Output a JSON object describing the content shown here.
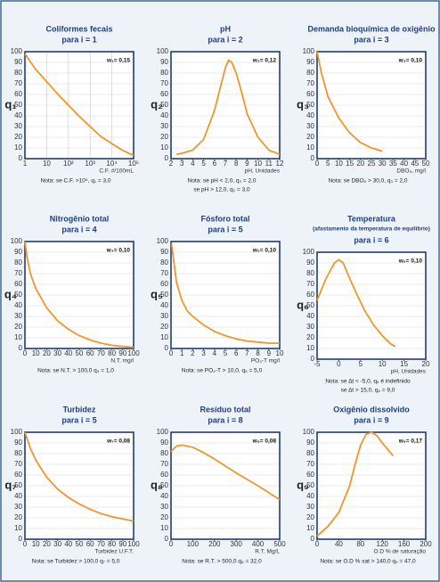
{
  "chart_data": [
    {
      "type": "line",
      "title": "Coliformes fecais",
      "subtitle": [
        "para i = 1"
      ],
      "ylabel": "q₁",
      "weight": "w₁= 0,15",
      "xlabel": "C.F. #/100mL",
      "xscale": "log",
      "x": [
        1,
        3,
        10,
        30,
        100,
        300,
        1000,
        3000,
        10000,
        30000,
        100000
      ],
      "values": [
        98,
        84,
        72,
        61,
        50,
        40,
        30,
        21,
        14,
        8,
        3
      ],
      "xlim": [
        1,
        100000
      ],
      "xticks": [
        {
          "value": 1,
          "label": "1"
        },
        {
          "value": 10,
          "label": "10"
        },
        {
          "value": 100,
          "label": "10²"
        },
        {
          "value": 1000,
          "label": "10³"
        },
        {
          "value": 10000,
          "label": "10⁴"
        },
        {
          "value": 100000,
          "label": "10⁵"
        }
      ],
      "ylim": [
        0,
        100
      ],
      "yticks": [
        0,
        10,
        20,
        30,
        40,
        50,
        60,
        70,
        80,
        90,
        100
      ],
      "grid": true,
      "color": "#f0962a",
      "notes": [
        "Nota: se C.F. >10⁵, q₁ = 3,0"
      ]
    },
    {
      "type": "line",
      "title": "pH",
      "subtitle": [
        "para i = 2"
      ],
      "ylabel": "q₂",
      "weight": "w₂= 0,12",
      "xlabel": "pH, Unidades",
      "x": [
        2.5,
        3,
        4,
        5,
        6,
        6.5,
        7,
        7.3,
        7.6,
        8,
        8.5,
        9,
        10,
        11,
        12
      ],
      "values": [
        4,
        5,
        8,
        18,
        45,
        65,
        85,
        92,
        90,
        80,
        62,
        42,
        20,
        8,
        4
      ],
      "xlim": [
        2,
        12
      ],
      "xticks": [
        2,
        3,
        4,
        5,
        6,
        7,
        8,
        9,
        10,
        11,
        12
      ],
      "ylim": [
        0,
        100
      ],
      "yticks": [
        0,
        10,
        20,
        30,
        40,
        50,
        60,
        70,
        80,
        90,
        100
      ],
      "grid": true,
      "color": "#f0962a",
      "notes": [
        "Nota: se pH < 2,0, q₂ = 2,0",
        "se pH > 12,0, q₂ = 3,0"
      ]
    },
    {
      "type": "line",
      "title": "Demanda bioquímica de oxigênio",
      "subtitle": [
        "para i = 3"
      ],
      "ylabel": "q₃",
      "weight": "w₃= 0,10",
      "xlabel": "DBO₅, mg/l",
      "x": [
        0,
        2,
        5,
        10,
        15,
        20,
        25,
        30
      ],
      "values": [
        100,
        80,
        58,
        38,
        24,
        15,
        10,
        7
      ],
      "xlim": [
        0,
        50
      ],
      "xticks": [
        0,
        5,
        10,
        15,
        20,
        25,
        30,
        35,
        40,
        45,
        50
      ],
      "ylim": [
        0,
        100
      ],
      "yticks": [
        0,
        10,
        20,
        30,
        40,
        50,
        60,
        70,
        80,
        90,
        100
      ],
      "grid": true,
      "color": "#f0962a",
      "notes": [
        "Nota: se DBO₅ > 30,0, q₃ = 2,0"
      ]
    },
    {
      "type": "line",
      "title": "Nitrogênio total",
      "subtitle": [
        "para i = 4"
      ],
      "ylabel": "q₄",
      "weight": "w₄= 0,10",
      "xlabel": "N.T. mg/l",
      "x": [
        0,
        2,
        5,
        10,
        20,
        30,
        40,
        50,
        60,
        70,
        80,
        90,
        100
      ],
      "values": [
        100,
        85,
        70,
        56,
        38,
        26,
        18,
        12,
        8,
        5,
        3,
        2,
        1
      ],
      "xlim": [
        0,
        100
      ],
      "xticks": [
        0,
        10,
        20,
        30,
        40,
        50,
        60,
        70,
        80,
        90,
        100
      ],
      "ylim": [
        0,
        100
      ],
      "yticks": [
        0,
        10,
        20,
        30,
        40,
        50,
        60,
        70,
        80,
        90,
        100
      ],
      "grid": true,
      "color": "#f0962a",
      "notes": [
        "Nota: se N.T. > 100,0  q₄ = 1,0"
      ]
    },
    {
      "type": "line",
      "title": "Fósforo total",
      "subtitle": [
        "para i = 5"
      ],
      "ylabel": "q₅",
      "weight": "w₅= 0,10",
      "xlabel": "PO₄-T mg/l",
      "x": [
        0.05,
        0.5,
        1,
        1.5,
        2,
        3,
        4,
        5,
        6,
        7,
        8,
        9,
        10
      ],
      "values": [
        98,
        62,
        45,
        35,
        30,
        22,
        16,
        12,
        9,
        7,
        6,
        5,
        5
      ],
      "xlim": [
        0,
        10
      ],
      "xticks": [
        0,
        1,
        2,
        3,
        4,
        5,
        6,
        7,
        8,
        9,
        10
      ],
      "ylim": [
        0,
        100
      ],
      "yticks": [
        0,
        10,
        20,
        30,
        40,
        50,
        60,
        70,
        80,
        90,
        100
      ],
      "grid": true,
      "color": "#f0962a",
      "notes": [
        "Nota: se PO₄-T > 10,0, q₅ = 5,0"
      ]
    },
    {
      "type": "line",
      "title": "Temperatura",
      "subtitle": [
        "(afastamento da temperatura de equilíbrio)",
        "para i = 6"
      ],
      "ylabel": "q₆",
      "weight": "w₆= 0,10",
      "xlabel": "pH, Unidades",
      "x": [
        -5,
        -3,
        -1,
        0,
        1,
        2,
        4,
        6,
        8,
        10,
        12,
        13
      ],
      "values": [
        55,
        75,
        90,
        93,
        90,
        80,
        62,
        45,
        32,
        22,
        14,
        12
      ],
      "xlim": [
        -5,
        20
      ],
      "xticks": [
        -5,
        0,
        5,
        10,
        15,
        20
      ],
      "ylim": [
        0,
        100
      ],
      "yticks": [
        0,
        10,
        20,
        30,
        40,
        50,
        60,
        70,
        80,
        90,
        100
      ],
      "grid": true,
      "color": "#f0962a",
      "notes": [
        "Nota: se ∆t < -5,0, q₆ é indefinido",
        "se ∆t > 15,0, q₆ = 9,0"
      ]
    },
    {
      "type": "line",
      "title": "Turbidez",
      "subtitle": [
        "para i = 5"
      ],
      "ylabel": "q₇",
      "weight": "w₇= 0,08",
      "xlabel": "Turbidez U.F.T.",
      "x": [
        0,
        5,
        10,
        20,
        30,
        40,
        50,
        60,
        70,
        80,
        90,
        100
      ],
      "values": [
        100,
        85,
        74,
        58,
        47,
        39,
        33,
        28,
        24,
        21,
        19,
        17
      ],
      "xlim": [
        0,
        100
      ],
      "xticks": [
        0,
        10,
        20,
        30,
        40,
        50,
        60,
        70,
        80,
        90,
        100
      ],
      "ylim": [
        0,
        100
      ],
      "yticks": [
        0,
        10,
        20,
        30,
        40,
        50,
        60,
        70,
        80,
        90,
        100
      ],
      "grid": true,
      "color": "#f0962a",
      "notes": [
        "Nota: se Turbidez > 100,0  q₇ = 5,0"
      ]
    },
    {
      "type": "line",
      "title": "Resíduo total",
      "subtitle": [
        "para i = 8"
      ],
      "ylabel": "q₈",
      "weight": "w₈= 0,08",
      "xlabel": "R.T. Mg/L",
      "x": [
        0,
        25,
        50,
        100,
        150,
        200,
        300,
        400,
        500
      ],
      "values": [
        82,
        87,
        88,
        86,
        81,
        75,
        62,
        50,
        37
      ],
      "xlim": [
        0,
        500
      ],
      "xticks": [
        0,
        100,
        200,
        300,
        400,
        500
      ],
      "ylim": [
        0,
        100
      ],
      "yticks": [
        0,
        10,
        20,
        30,
        40,
        50,
        60,
        70,
        80,
        90,
        100
      ],
      "grid": true,
      "color": "#f0962a",
      "notes": [
        "Nota: se R.T. > 500,0  q₈ = 32,0"
      ]
    },
    {
      "type": "line",
      "title": "Oxigênio dissolvido",
      "subtitle": [
        "para i = 9"
      ],
      "ylabel": "q₉",
      "weight": "w₉= 0,17",
      "xlabel": "O.D % de saturação",
      "x": [
        0,
        20,
        40,
        60,
        70,
        80,
        90,
        100,
        110,
        120,
        140
      ],
      "values": [
        3,
        12,
        25,
        50,
        70,
        88,
        98,
        100,
        97,
        90,
        78
      ],
      "xlim": [
        0,
        200
      ],
      "xticks": [
        0,
        40,
        80,
        120,
        160,
        200
      ],
      "ylim": [
        0,
        100
      ],
      "yticks": [
        0,
        10,
        20,
        30,
        40,
        50,
        60,
        70,
        80,
        90,
        100
      ],
      "grid": true,
      "color": "#f0962a",
      "notes": [
        "Nota: se O.D % sat > 140,0  q₉ = 47,0"
      ]
    }
  ]
}
